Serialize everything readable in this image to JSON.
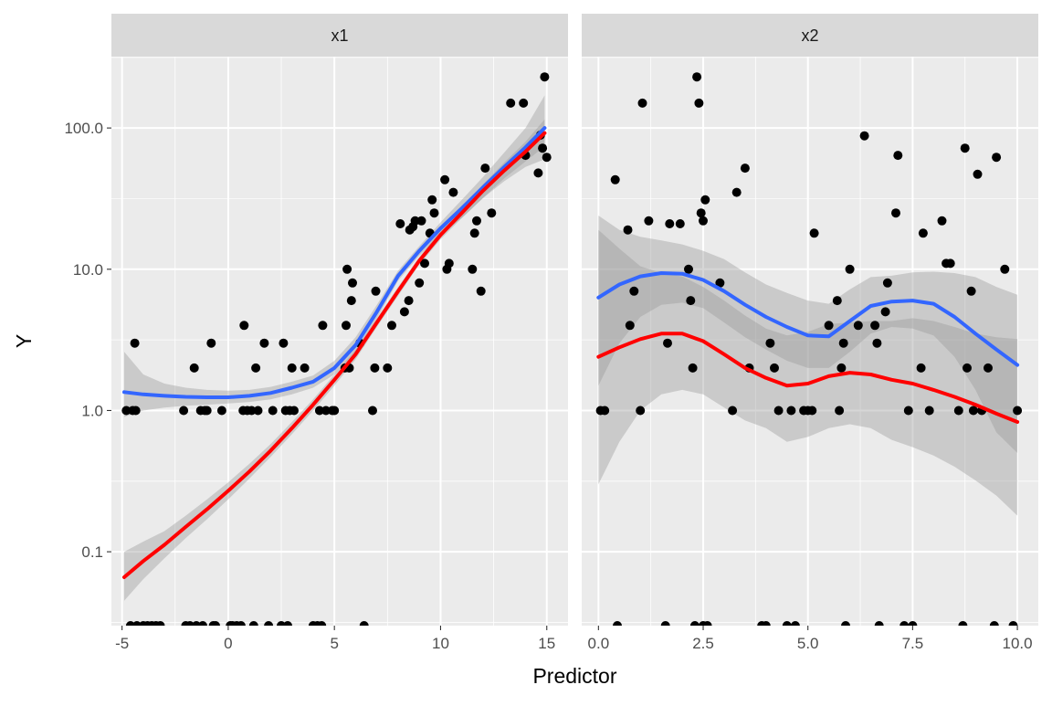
{
  "chart_data": {
    "type": "scatter",
    "title": "",
    "xlabel": "Predictor",
    "ylabel": "Y",
    "y_scale": "log10",
    "ylim": [
      0.03,
      320
    ],
    "y_ticks": [
      0.1,
      1,
      10,
      100
    ],
    "y_tick_labels": [
      "0.1",
      "1.0",
      "10.0",
      "100.0"
    ],
    "grid": true,
    "colors": {
      "panel_bg": "#EBEBEB",
      "strip_bg": "#D9D9D9",
      "grid": "#FFFFFF",
      "points": "#000000",
      "fit_blue": "#3366FF",
      "fit_red": "#FF0000",
      "ribbon": "#999999"
    },
    "panels": [
      {
        "strip_label": "x1",
        "xlim": [
          -5.5,
          16
        ],
        "x_ticks": [
          -5,
          0,
          5,
          10,
          15
        ],
        "x_tick_labels": [
          "-5",
          "0",
          "5",
          "10",
          "15"
        ],
        "points": [
          [
            -4.8,
            1
          ],
          [
            -4.6,
            0.03
          ],
          [
            -4.5,
            1
          ],
          [
            -4.4,
            3
          ],
          [
            -4.35,
            1
          ],
          [
            -4.3,
            0.03
          ],
          [
            -4,
            0.03
          ],
          [
            -3.8,
            0.03
          ],
          [
            -3.6,
            0.03
          ],
          [
            -3.4,
            0.03
          ],
          [
            -3.2,
            0.03
          ],
          [
            -2.1,
            1
          ],
          [
            -2,
            0.03
          ],
          [
            -1.8,
            0.03
          ],
          [
            -1.6,
            2
          ],
          [
            -1.5,
            0.03
          ],
          [
            -1.3,
            1
          ],
          [
            -1.2,
            0.03
          ],
          [
            -1.1,
            1
          ],
          [
            -1,
            1
          ],
          [
            -0.8,
            3
          ],
          [
            -0.7,
            0.03
          ],
          [
            -0.6,
            0.03
          ],
          [
            -0.3,
            1
          ],
          [
            0.1,
            0.03
          ],
          [
            0.2,
            0.03
          ],
          [
            0.4,
            0.03
          ],
          [
            0.6,
            0.03
          ],
          [
            0.7,
            1
          ],
          [
            0.75,
            4
          ],
          [
            0.9,
            1
          ],
          [
            1.1,
            1
          ],
          [
            1.2,
            0.03
          ],
          [
            1.3,
            2
          ],
          [
            1.4,
            1
          ],
          [
            1.7,
            3
          ],
          [
            1.9,
            0.03
          ],
          [
            2.1,
            1
          ],
          [
            2.5,
            0.03
          ],
          [
            2.6,
            3
          ],
          [
            2.7,
            1
          ],
          [
            2.8,
            0.03
          ],
          [
            2.9,
            1
          ],
          [
            3.0,
            2
          ],
          [
            3.1,
            1
          ],
          [
            3.6,
            2
          ],
          [
            4.0,
            0.03
          ],
          [
            4.2,
            0.03
          ],
          [
            4.3,
            1
          ],
          [
            4.4,
            0.03
          ],
          [
            4.45,
            4
          ],
          [
            4.6,
            1
          ],
          [
            4.9,
            1
          ],
          [
            5.0,
            1
          ],
          [
            5.5,
            2
          ],
          [
            5.55,
            4
          ],
          [
            5.6,
            10
          ],
          [
            5.7,
            2
          ],
          [
            5.8,
            6
          ],
          [
            5.85,
            8
          ],
          [
            6.2,
            3
          ],
          [
            6.4,
            0.03
          ],
          [
            6.8,
            1
          ],
          [
            6.9,
            2
          ],
          [
            6.95,
            7
          ],
          [
            7.5,
            2
          ],
          [
            7.7,
            4
          ],
          [
            8.1,
            21
          ],
          [
            8.3,
            5
          ],
          [
            8.5,
            6
          ],
          [
            8.55,
            19
          ],
          [
            8.7,
            20
          ],
          [
            8.8,
            22
          ],
          [
            9.0,
            8
          ],
          [
            9.1,
            22
          ],
          [
            9.25,
            11
          ],
          [
            9.5,
            18
          ],
          [
            9.6,
            31
          ],
          [
            9.7,
            25
          ],
          [
            10.2,
            43
          ],
          [
            10.3,
            10
          ],
          [
            10.4,
            11
          ],
          [
            10.6,
            35
          ],
          [
            11.5,
            10
          ],
          [
            11.6,
            18
          ],
          [
            11.7,
            22
          ],
          [
            11.9,
            7
          ],
          [
            12.1,
            52
          ],
          [
            12.4,
            25
          ],
          [
            13.3,
            150
          ],
          [
            13.9,
            150
          ],
          [
            14.0,
            64
          ],
          [
            14.6,
            48
          ],
          [
            14.7,
            89
          ],
          [
            14.8,
            72
          ],
          [
            14.9,
            230
          ],
          [
            15.0,
            62
          ]
        ],
        "fits": [
          {
            "color": "#3366FF",
            "x": [
              -4.9,
              -4,
              -3,
              -2,
              -1,
              0,
              1,
              2,
              3,
              4,
              5,
              6,
              7,
              8,
              9,
              10,
              11,
              12,
              13,
              14,
              14.9
            ],
            "y": [
              1.35,
              1.3,
              1.27,
              1.25,
              1.24,
              1.24,
              1.27,
              1.33,
              1.45,
              1.6,
              2.0,
              2.9,
              5.0,
              9.0,
              13.5,
              19.5,
              27,
              38,
              53,
              73,
              100
            ],
            "lower": [
              0.9,
              1.0,
              1.05,
              1.08,
              1.1,
              1.12,
              1.15,
              1.2,
              1.3,
              1.45,
              1.8,
              2.6,
              4.5,
              8.3,
              12.5,
              17.5,
              23,
              32,
              42,
              53,
              60
            ],
            "upper": [
              2.6,
              1.8,
              1.55,
              1.45,
              1.4,
              1.38,
              1.4,
              1.47,
              1.6,
              1.77,
              2.25,
              3.3,
              5.6,
              9.8,
              14.6,
              21.5,
              31,
              45,
              67,
              100,
              170
            ]
          },
          {
            "color": "#FF0000",
            "x": [
              -4.9,
              -4,
              -3,
              -2,
              -1,
              0,
              1,
              2,
              3,
              4,
              5,
              6,
              7,
              8,
              9,
              10,
              11,
              12,
              13,
              14,
              14.9
            ],
            "y": [
              0.066,
              0.086,
              0.112,
              0.15,
              0.2,
              0.27,
              0.37,
              0.52,
              0.75,
              1.1,
              1.65,
              2.5,
              4.2,
              7,
              11.5,
              17.5,
              25,
              36,
              50,
              68,
              92
            ],
            "lower": [
              0.045,
              0.064,
              0.09,
              0.125,
              0.17,
              0.235,
              0.33,
              0.47,
              0.68,
              1.0,
              1.5,
              2.3,
              3.9,
              6.5,
              10.8,
              16.3,
              23,
              32,
              44,
              58,
              74
            ],
            "upper": [
              0.1,
              0.118,
              0.14,
              0.18,
              0.235,
              0.31,
              0.42,
              0.58,
              0.83,
              1.2,
              1.8,
              2.7,
              4.5,
              7.5,
              12.2,
              18.8,
              27,
              40,
              57,
              80,
              115
            ]
          }
        ]
      },
      {
        "strip_label": "x2",
        "xlim": [
          -0.4,
          10.5
        ],
        "x_ticks": [
          0,
          2.5,
          5,
          7.5,
          10
        ],
        "x_tick_labels": [
          "0.0",
          "2.5",
          "5.0",
          "7.5",
          "10.0"
        ],
        "points": [
          [
            0.05,
            1
          ],
          [
            0.15,
            1
          ],
          [
            0.4,
            43
          ],
          [
            0.45,
            0.03
          ],
          [
            0.7,
            19
          ],
          [
            0.75,
            4
          ],
          [
            0.85,
            7
          ],
          [
            1.0,
            1
          ],
          [
            1.05,
            150
          ],
          [
            1.2,
            22
          ],
          [
            1.6,
            0.03
          ],
          [
            1.65,
            3
          ],
          [
            1.7,
            21
          ],
          [
            1.95,
            21
          ],
          [
            2.15,
            10
          ],
          [
            2.2,
            6
          ],
          [
            2.25,
            2
          ],
          [
            2.3,
            0.03
          ],
          [
            2.35,
            230
          ],
          [
            2.4,
            150
          ],
          [
            2.45,
            25
          ],
          [
            2.5,
            22
          ],
          [
            2.55,
            31
          ],
          [
            2.5,
            0.03
          ],
          [
            2.6,
            0.03
          ],
          [
            2.9,
            8
          ],
          [
            3.2,
            1
          ],
          [
            3.3,
            35
          ],
          [
            3.5,
            52
          ],
          [
            3.6,
            2
          ],
          [
            3.9,
            0.03
          ],
          [
            4.0,
            0.03
          ],
          [
            4.1,
            3
          ],
          [
            4.2,
            2
          ],
          [
            4.3,
            1
          ],
          [
            4.5,
            0.03
          ],
          [
            4.6,
            1
          ],
          [
            4.7,
            0.03
          ],
          [
            4.9,
            1
          ],
          [
            5.0,
            1
          ],
          [
            5.1,
            1
          ],
          [
            5.15,
            18
          ],
          [
            5.5,
            4
          ],
          [
            5.7,
            6
          ],
          [
            5.8,
            2
          ],
          [
            5.75,
            1
          ],
          [
            5.85,
            3
          ],
          [
            5.9,
            0.03
          ],
          [
            6.0,
            10
          ],
          [
            6.2,
            4
          ],
          [
            6.35,
            88
          ],
          [
            6.6,
            4
          ],
          [
            6.65,
            3
          ],
          [
            6.7,
            0.03
          ],
          [
            6.85,
            5
          ],
          [
            6.9,
            8
          ],
          [
            7.1,
            25
          ],
          [
            7.15,
            64
          ],
          [
            7.3,
            0.03
          ],
          [
            7.4,
            1
          ],
          [
            7.5,
            0.03
          ],
          [
            7.7,
            2
          ],
          [
            7.75,
            18
          ],
          [
            7.9,
            1
          ],
          [
            8.2,
            22
          ],
          [
            8.3,
            11
          ],
          [
            8.4,
            11
          ],
          [
            8.6,
            1
          ],
          [
            8.7,
            0.03
          ],
          [
            8.75,
            72
          ],
          [
            8.8,
            2
          ],
          [
            8.9,
            7
          ],
          [
            8.95,
            1
          ],
          [
            9.05,
            47
          ],
          [
            9.15,
            1
          ],
          [
            9.3,
            2
          ],
          [
            9.45,
            0.03
          ],
          [
            9.5,
            62
          ],
          [
            9.7,
            10
          ],
          [
            9.9,
            0.03
          ],
          [
            10.0,
            1
          ]
        ],
        "fits": [
          {
            "color": "#3366FF",
            "x": [
              0,
              0.5,
              1,
              1.5,
              2,
              2.5,
              3,
              3.5,
              4,
              4.5,
              5,
              5.5,
              6,
              6.5,
              7,
              7.5,
              8,
              8.5,
              9,
              9.5,
              10
            ],
            "y": [
              6.3,
              7.8,
              8.9,
              9.4,
              9.3,
              8.4,
              7.0,
              5.6,
              4.6,
              3.9,
              3.4,
              3.35,
              4.3,
              5.5,
              5.9,
              6.0,
              5.7,
              4.6,
              3.5,
              2.7,
              2.1
            ],
            "lower": [
              1.5,
              3.0,
              4.6,
              5.6,
              5.8,
              5.3,
              4.2,
              3.3,
              2.7,
              2.25,
              2.0,
              2.0,
              2.6,
              3.5,
              3.9,
              3.8,
              3.4,
              2.4,
              1.4,
              0.7,
              0.5
            ],
            "upper": [
              24,
              19,
              17,
              16,
              15,
              13.5,
              11.8,
              9.5,
              7.8,
              6.8,
              6.0,
              5.7,
              7.2,
              8.8,
              9.0,
              9.5,
              9.6,
              9.4,
              8.8,
              7.5,
              6.6
            ]
          },
          {
            "color": "#FF0000",
            "x": [
              0,
              0.5,
              1,
              1.5,
              2,
              2.5,
              3,
              3.5,
              4,
              4.5,
              5,
              5.5,
              6,
              6.5,
              7,
              7.5,
              8,
              8.5,
              9,
              9.5,
              10
            ],
            "y": [
              2.4,
              2.8,
              3.2,
              3.5,
              3.5,
              3.1,
              2.5,
              2.0,
              1.7,
              1.5,
              1.55,
              1.75,
              1.85,
              1.8,
              1.65,
              1.55,
              1.4,
              1.25,
              1.1,
              0.95,
              0.83
            ],
            "lower": [
              0.3,
              0.6,
              1.0,
              1.3,
              1.4,
              1.3,
              1.05,
              0.85,
              0.75,
              0.6,
              0.65,
              0.75,
              0.8,
              0.75,
              0.62,
              0.55,
              0.48,
              0.4,
              0.32,
              0.25,
              0.18
            ],
            "upper": [
              19,
              14,
              10.5,
              9.4,
              8.9,
              7.5,
              6.0,
              4.7,
              3.8,
              3.4,
              3.6,
              4.1,
              4.2,
              4.3,
              4.3,
              4.5,
              4.3,
              3.9,
              3.5,
              3.3,
              3.2
            ]
          }
        ]
      }
    ]
  }
}
